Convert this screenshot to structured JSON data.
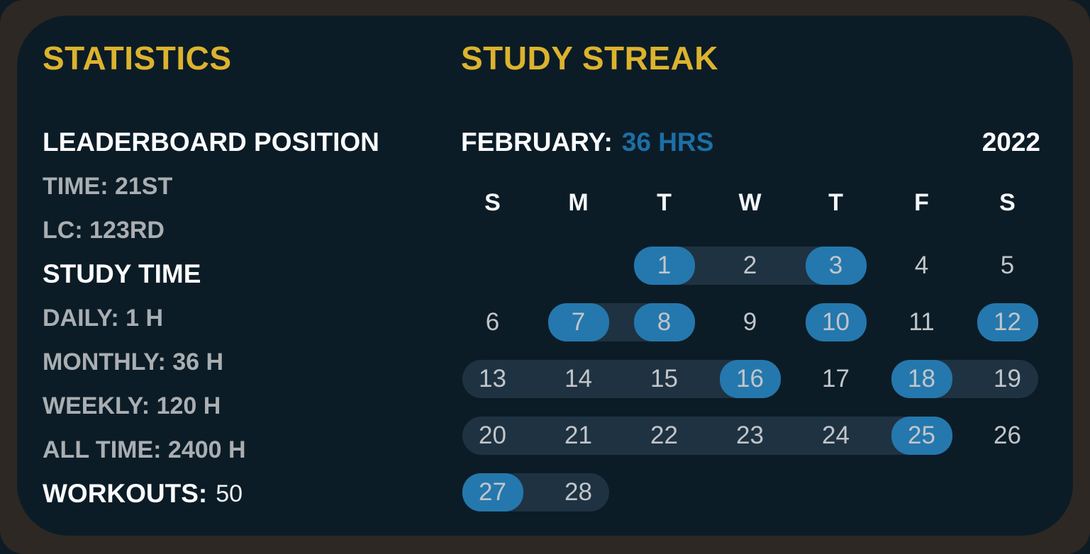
{
  "colors": {
    "outer_bg": "#0d1b24",
    "frame_brown": "#2d2823",
    "panel_navy": "#0c1c26",
    "accent_yellow": "#dcb32e",
    "day_highlight_blue": "#2478ad",
    "hours_blue": "#1d6fa6",
    "streak_pill": "#1f3242",
    "heading_white": "#fbfcfd",
    "value_gray": "#a9aeb2",
    "day_number_gray": "#c1c5c9"
  },
  "statistics": {
    "title": "STATISTICS",
    "lines": [
      {
        "text": "LEADERBOARD POSITION",
        "kind": "heading"
      },
      {
        "text": "TIME: 21ST",
        "kind": "value"
      },
      {
        "text": "LC: 123RD",
        "kind": "value"
      },
      {
        "text": "STUDY TIME",
        "kind": "heading"
      },
      {
        "text": "DAILY: 1 H",
        "kind": "value"
      },
      {
        "text": "MONTHLY: 36 H",
        "kind": "value"
      },
      {
        "text": "WEEKLY: 120 H",
        "kind": "value"
      },
      {
        "text": "ALL TIME: 2400 H",
        "kind": "value"
      }
    ],
    "workouts_label": "WORKOUTS:",
    "workouts_value": "50"
  },
  "study_streak": {
    "title": "STUDY STREAK",
    "month_label": "FEBRUARY:",
    "month_hours": "36 HRS",
    "year": "2022",
    "weekdays": [
      "S",
      "M",
      "T",
      "W",
      "T",
      "F",
      "S"
    ],
    "highlighted_days": [
      1,
      3,
      7,
      8,
      10,
      12,
      16,
      18,
      25,
      27
    ],
    "weeks": [
      {
        "days": [
          null,
          null,
          1,
          2,
          3,
          4,
          5
        ],
        "pills": [
          [
            2,
            4
          ]
        ]
      },
      {
        "days": [
          6,
          7,
          8,
          9,
          10,
          11,
          12
        ],
        "pills": [
          [
            1,
            2
          ]
        ]
      },
      {
        "days": [
          13,
          14,
          15,
          16,
          17,
          18,
          19
        ],
        "pills": [
          [
            0,
            3
          ],
          [
            5,
            6
          ]
        ]
      },
      {
        "days": [
          20,
          21,
          22,
          23,
          24,
          25,
          26
        ],
        "pills": [
          [
            0,
            5
          ]
        ]
      },
      {
        "days": [
          27,
          28,
          null,
          null,
          null,
          null,
          null
        ],
        "pills": [
          [
            0,
            1
          ]
        ]
      }
    ]
  }
}
